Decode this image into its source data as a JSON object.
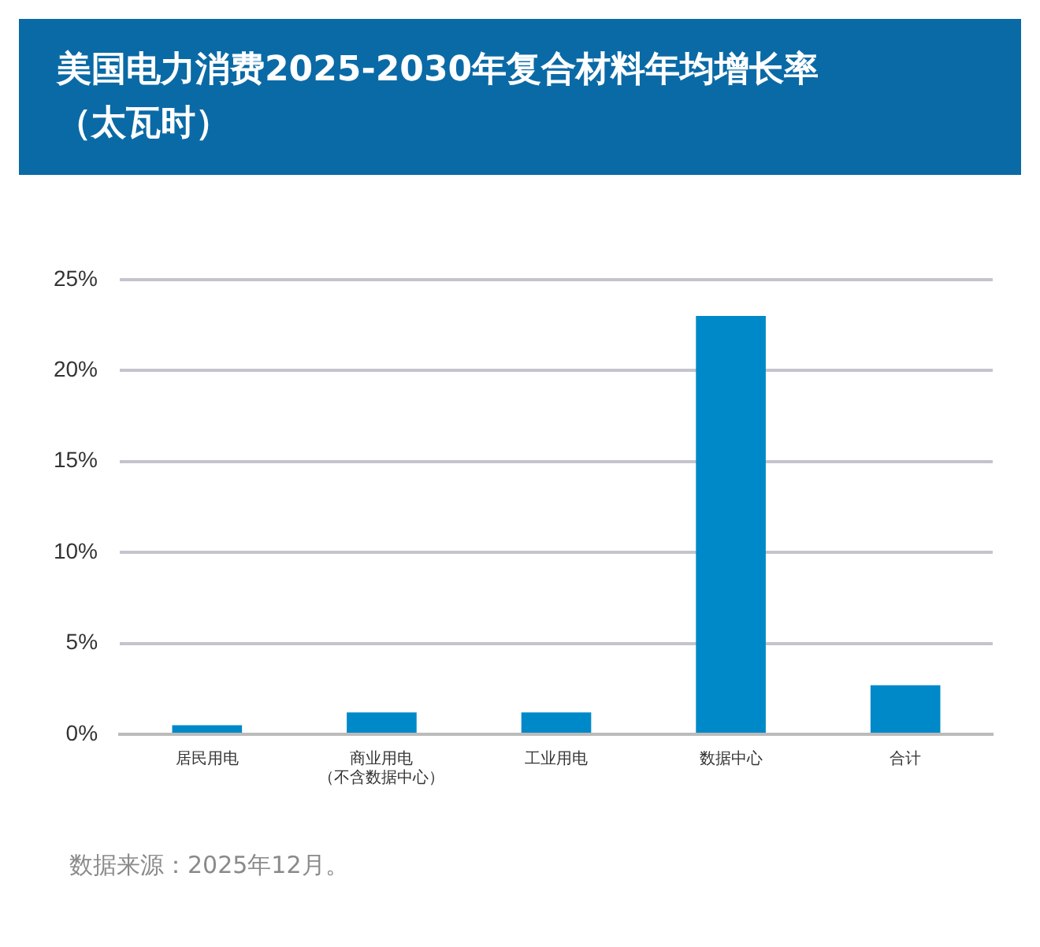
{
  "chart_data": {
    "type": "bar",
    "title": "美国电力消费2025-2030年复合材料年均增长率（太瓦时）",
    "categories": [
      "居民用电",
      "商业用电（不含数据中心）",
      "工业用电",
      "数据中心",
      "合计"
    ],
    "values": [
      0.5,
      1.2,
      1.2,
      23,
      2.7
    ],
    "color": "#0089c9",
    "ylim": [
      0,
      25
    ],
    "yticks": [
      {
        "value": 0,
        "label": "0%"
      },
      {
        "value": 5,
        "label": "5%"
      },
      {
        "value": 10,
        "label": "10%"
      },
      {
        "value": 15,
        "label": "15%"
      },
      {
        "value": 20,
        "label": "20%"
      },
      {
        "value": 25,
        "label": "25%"
      }
    ],
    "grid": "y",
    "annotations": [
      "数据来源：2025年12月。"
    ]
  }
}
